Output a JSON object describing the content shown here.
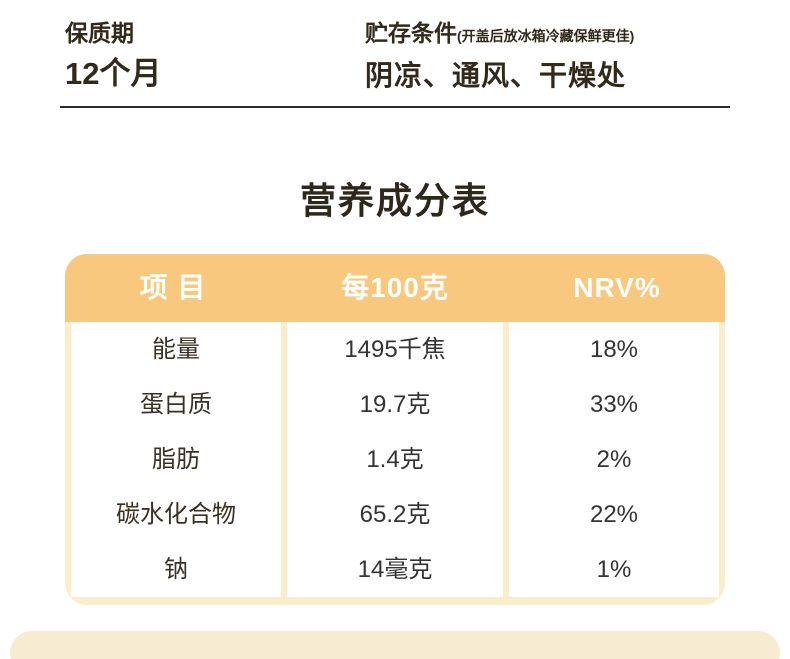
{
  "top": {
    "shelf_life": {
      "label": "保质期",
      "value": "12个月"
    },
    "storage": {
      "label": "贮存条件",
      "note": "(开盖后放冰箱冷藏保鲜更佳)",
      "value": "阴凉、通风、干燥处"
    }
  },
  "nutrition": {
    "title": "营养成分表",
    "headers": [
      "项 目",
      "每100克",
      "NRV%"
    ],
    "rows": [
      {
        "item": "能量",
        "per100g": "1495千焦",
        "nrv": "18%"
      },
      {
        "item": "蛋白质",
        "per100g": "19.7克",
        "nrv": "33%"
      },
      {
        "item": "脂肪",
        "per100g": "1.4克",
        "nrv": "2%"
      },
      {
        "item": "碳水化合物",
        "per100g": "65.2克",
        "nrv": "22%"
      },
      {
        "item": "钠",
        "per100g": "14毫克",
        "nrv": "1%"
      }
    ]
  },
  "colors": {
    "header_bg": "#f7c87d",
    "table_bg": "#fbedc9",
    "footer_bg": "#f7ecd2",
    "header_text": "#ffffff",
    "body_text": "#333333",
    "dark_text": "#33291a"
  }
}
